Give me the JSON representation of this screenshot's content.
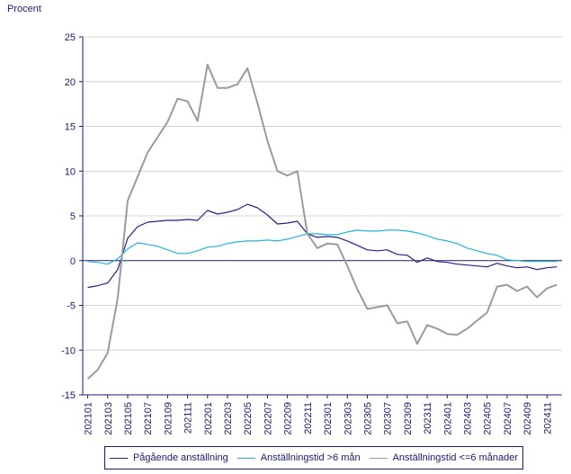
{
  "chart_data": {
    "type": "line",
    "ylabel": "Procent",
    "ylim": [
      -15,
      25
    ],
    "yticks": [
      -15,
      -10,
      -5,
      0,
      5,
      10,
      15,
      20,
      25
    ],
    "x": [
      "202101",
      "202102",
      "202103",
      "202104",
      "202105",
      "202106",
      "202107",
      "202108",
      "202109",
      "202110",
      "202111",
      "202112",
      "202201",
      "202202",
      "202203",
      "202204",
      "202205",
      "202206",
      "202207",
      "202208",
      "202209",
      "202210",
      "202211",
      "202212",
      "202301",
      "202302",
      "202303",
      "202304",
      "202305",
      "202306",
      "202307",
      "202308",
      "202309",
      "202310",
      "202311",
      "202312",
      "202401",
      "202402",
      "202403",
      "202404",
      "202405",
      "202406",
      "202407",
      "202408",
      "202409",
      "202410",
      "202411",
      "202412"
    ],
    "xtick_labels": [
      "202101",
      "202103",
      "202105",
      "202107",
      "202109",
      "202111",
      "202201",
      "202203",
      "202205",
      "202207",
      "202209",
      "202211",
      "202301",
      "202303",
      "202305",
      "202307",
      "202309",
      "202311",
      "202401",
      "202403",
      "202405",
      "202407",
      "202409",
      "202411"
    ],
    "legend_position": "bottom",
    "series": [
      {
        "name": "Pågående anställning",
        "color": "#2a1e8c",
        "values": [
          -3.0,
          -2.8,
          -2.5,
          -1.0,
          2.5,
          3.8,
          4.3,
          4.4,
          4.5,
          4.5,
          4.6,
          4.5,
          5.6,
          5.2,
          5.4,
          5.7,
          6.3,
          5.9,
          5.1,
          4.1,
          4.2,
          4.4,
          3.0,
          2.6,
          2.7,
          2.6,
          2.2,
          1.7,
          1.2,
          1.1,
          1.2,
          0.7,
          0.6,
          -0.2,
          0.3,
          -0.1,
          -0.2,
          -0.4,
          -0.5,
          -0.6,
          -0.7,
          -0.3,
          -0.6,
          -0.8,
          -0.7,
          -1.0,
          -0.8,
          -0.7
        ]
      },
      {
        "name": "Anställningstid >6 mån",
        "color": "#22b5d8",
        "values": [
          -0.1,
          -0.2,
          -0.4,
          0.2,
          1.3,
          2.0,
          1.8,
          1.6,
          1.2,
          0.8,
          0.8,
          1.1,
          1.5,
          1.6,
          1.9,
          2.1,
          2.2,
          2.2,
          2.3,
          2.2,
          2.4,
          2.7,
          3.0,
          3.0,
          2.9,
          2.9,
          3.2,
          3.4,
          3.3,
          3.3,
          3.4,
          3.4,
          3.3,
          3.1,
          2.8,
          2.4,
          2.2,
          1.9,
          1.4,
          1.1,
          0.8,
          0.6,
          0.1,
          0.0,
          -0.1,
          -0.1,
          -0.1,
          -0.1
        ]
      },
      {
        "name": "Anställningstid <=6 månader",
        "color": "#9b9b9b",
        "values": [
          -13.2,
          -12.2,
          -10.3,
          -4.2,
          6.7,
          9.4,
          12.1,
          13.8,
          15.5,
          18.1,
          17.8,
          15.6,
          21.9,
          19.3,
          19.3,
          19.7,
          21.5,
          17.6,
          13.4,
          10.0,
          9.5,
          10.0,
          3.0,
          1.4,
          1.9,
          1.8,
          -0.6,
          -3.2,
          -5.4,
          -5.2,
          -5.0,
          -7.0,
          -6.8,
          -9.3,
          -7.2,
          -7.6,
          -8.2,
          -8.3,
          -7.6,
          -6.7,
          -5.8,
          -2.9,
          -2.7,
          -3.4,
          -2.9,
          -4.1,
          -3.1,
          -2.7
        ]
      }
    ]
  }
}
